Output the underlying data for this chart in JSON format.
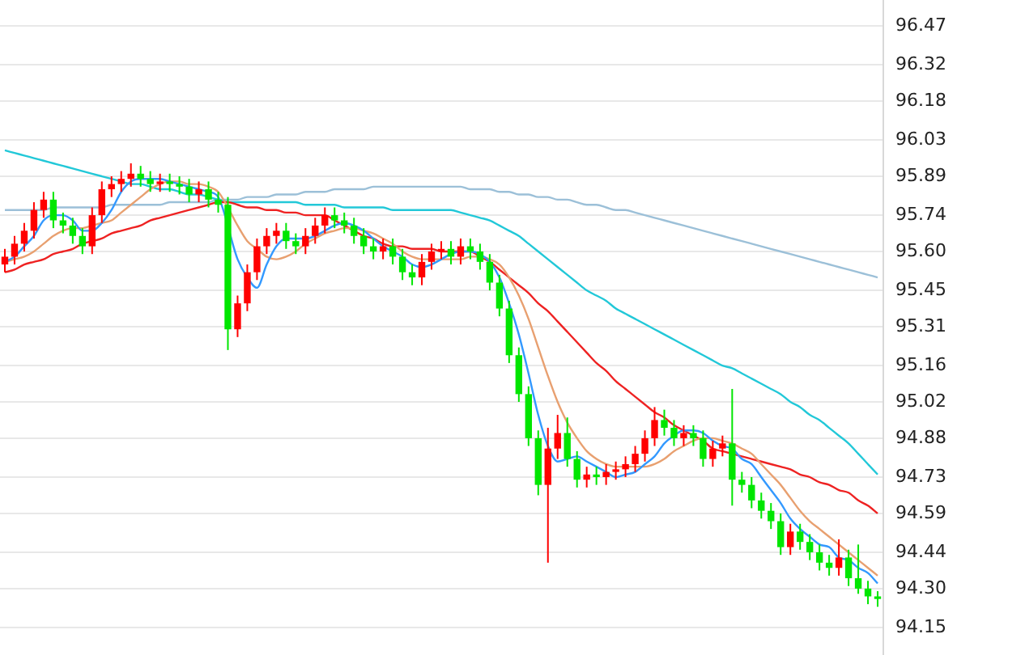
{
  "chart_data": {
    "type": "candlestick",
    "categories": [
      null,
      null,
      null,
      null,
      null,
      null,
      null,
      null,
      null,
      null,
      null,
      null,
      null,
      null,
      null,
      null,
      null,
      null,
      null,
      null,
      null,
      null,
      null,
      null,
      null,
      null,
      null,
      null,
      null,
      null,
      null,
      null,
      null,
      null,
      null,
      null,
      null,
      null,
      null,
      null,
      null,
      null,
      null,
      null,
      null,
      null,
      null,
      null,
      null,
      null,
      null,
      null,
      null,
      null,
      null,
      null,
      null,
      null,
      null,
      null,
      null,
      null,
      null,
      null,
      null,
      null,
      null,
      null,
      null,
      null,
      null,
      null,
      null,
      null,
      null,
      null,
      null,
      null,
      null,
      null,
      null,
      null,
      null,
      null,
      null,
      null,
      null,
      null,
      null,
      null,
      null
    ],
    "ohlc": [
      [
        95.55,
        95.61,
        95.52,
        95.58
      ],
      [
        95.58,
        95.66,
        95.55,
        95.63
      ],
      [
        95.63,
        95.71,
        95.6,
        95.68
      ],
      [
        95.68,
        95.79,
        95.65,
        95.76
      ],
      [
        95.76,
        95.83,
        95.73,
        95.8
      ],
      [
        95.8,
        95.83,
        95.69,
        95.72
      ],
      [
        95.72,
        95.75,
        95.67,
        95.7
      ],
      [
        95.7,
        95.73,
        95.63,
        95.66
      ],
      [
        95.66,
        95.69,
        95.59,
        95.62
      ],
      [
        95.62,
        95.77,
        95.59,
        95.74
      ],
      [
        95.74,
        95.87,
        95.71,
        95.84
      ],
      [
        95.84,
        95.89,
        95.81,
        95.86
      ],
      [
        95.86,
        95.91,
        95.83,
        95.88
      ],
      [
        95.88,
        95.94,
        95.85,
        95.9
      ],
      [
        95.9,
        95.93,
        95.85,
        95.88
      ],
      [
        95.88,
        95.91,
        95.83,
        95.86
      ],
      [
        95.86,
        95.9,
        95.83,
        95.87
      ],
      [
        95.87,
        95.9,
        95.83,
        95.86
      ],
      [
        95.86,
        95.89,
        95.82,
        95.85
      ],
      [
        95.85,
        95.88,
        95.79,
        95.82
      ],
      [
        95.82,
        95.87,
        95.79,
        95.84
      ],
      [
        95.84,
        95.87,
        95.77,
        95.8
      ],
      [
        95.8,
        95.83,
        95.75,
        95.78
      ],
      [
        95.78,
        95.81,
        95.22,
        95.3
      ],
      [
        95.3,
        95.43,
        95.27,
        95.4
      ],
      [
        95.4,
        95.55,
        95.37,
        95.52
      ],
      [
        95.52,
        95.65,
        95.49,
        95.62
      ],
      [
        95.62,
        95.69,
        95.59,
        95.66
      ],
      [
        95.66,
        95.71,
        95.63,
        95.68
      ],
      [
        95.68,
        95.71,
        95.61,
        95.64
      ],
      [
        95.64,
        95.67,
        95.59,
        95.62
      ],
      [
        95.62,
        95.69,
        95.59,
        95.66
      ],
      [
        95.66,
        95.73,
        95.63,
        95.7
      ],
      [
        95.7,
        95.77,
        95.67,
        95.74
      ],
      [
        95.74,
        95.77,
        95.69,
        95.72
      ],
      [
        95.72,
        95.75,
        95.67,
        95.7
      ],
      [
        95.7,
        95.73,
        95.63,
        95.66
      ],
      [
        95.66,
        95.69,
        95.59,
        95.62
      ],
      [
        95.62,
        95.65,
        95.57,
        95.6
      ],
      [
        95.6,
        95.65,
        95.57,
        95.62
      ],
      [
        95.62,
        95.65,
        95.55,
        95.58
      ],
      [
        95.58,
        95.61,
        95.49,
        95.52
      ],
      [
        95.52,
        95.55,
        95.47,
        95.5
      ],
      [
        95.5,
        95.59,
        95.47,
        95.56
      ],
      [
        95.56,
        95.63,
        95.53,
        95.6
      ],
      [
        95.6,
        95.64,
        95.57,
        95.61
      ],
      [
        95.61,
        95.64,
        95.55,
        95.58
      ],
      [
        95.58,
        95.65,
        95.55,
        95.62
      ],
      [
        95.62,
        95.65,
        95.57,
        95.6
      ],
      [
        95.6,
        95.63,
        95.53,
        95.56
      ],
      [
        95.56,
        95.59,
        95.45,
        95.48
      ],
      [
        95.48,
        95.51,
        95.35,
        95.38
      ],
      [
        95.38,
        95.41,
        95.17,
        95.2
      ],
      [
        95.2,
        95.23,
        95.02,
        95.05
      ],
      [
        95.05,
        95.08,
        94.85,
        94.88
      ],
      [
        94.88,
        94.91,
        94.66,
        94.7
      ],
      [
        94.7,
        94.92,
        94.4,
        94.84
      ],
      [
        94.84,
        94.97,
        94.8,
        94.9
      ],
      [
        94.9,
        94.96,
        94.77,
        94.8
      ],
      [
        94.8,
        94.83,
        94.69,
        94.72
      ],
      [
        94.72,
        94.77,
        94.69,
        94.74
      ],
      [
        94.74,
        94.77,
        94.7,
        94.73
      ],
      [
        94.73,
        94.78,
        94.7,
        94.75
      ],
      [
        94.75,
        94.79,
        94.72,
        94.76
      ],
      [
        94.76,
        94.81,
        94.73,
        94.78
      ],
      [
        94.78,
        94.85,
        94.75,
        94.82
      ],
      [
        94.82,
        94.91,
        94.79,
        94.88
      ],
      [
        94.88,
        95.0,
        94.85,
        94.95
      ],
      [
        94.95,
        94.99,
        94.89,
        94.92
      ],
      [
        94.92,
        94.95,
        94.85,
        94.88
      ],
      [
        94.88,
        94.93,
        94.85,
        94.9
      ],
      [
        94.9,
        94.93,
        94.85,
        94.88
      ],
      [
        94.88,
        94.91,
        94.77,
        94.8
      ],
      [
        94.8,
        94.87,
        94.77,
        94.84
      ],
      [
        94.84,
        94.89,
        94.81,
        94.86
      ],
      [
        94.86,
        95.07,
        94.62,
        94.72
      ],
      [
        94.72,
        94.75,
        94.67,
        94.7
      ],
      [
        94.7,
        94.73,
        94.61,
        94.64
      ],
      [
        94.64,
        94.67,
        94.57,
        94.6
      ],
      [
        94.6,
        94.63,
        94.53,
        94.56
      ],
      [
        94.56,
        94.59,
        94.43,
        94.46
      ],
      [
        94.46,
        94.55,
        94.43,
        94.52
      ],
      [
        94.52,
        94.55,
        94.45,
        94.48
      ],
      [
        94.48,
        94.51,
        94.41,
        94.44
      ],
      [
        94.44,
        94.47,
        94.37,
        94.4
      ],
      [
        94.4,
        94.43,
        94.35,
        94.38
      ],
      [
        94.38,
        94.49,
        94.35,
        94.42
      ],
      [
        94.42,
        94.45,
        94.31,
        94.34
      ],
      [
        94.34,
        94.47,
        94.28,
        94.3
      ],
      [
        94.3,
        94.33,
        94.24,
        94.27
      ],
      [
        94.27,
        94.29,
        94.23,
        94.26
      ]
    ],
    "colors": [
      "#ff0000",
      "#ff0000",
      "#ff0000",
      "#ff0000",
      "#ff0000",
      "#00e600",
      "#00e600",
      "#00e600",
      "#00e600",
      "#ff0000",
      "#ff0000",
      "#ff0000",
      "#ff0000",
      "#ff0000",
      "#00e600",
      "#00e600",
      "#ff0000",
      "#00e600",
      "#00e600",
      "#00e600",
      "#ff0000",
      "#00e600",
      "#00e600",
      "#00e600",
      "#ff0000",
      "#ff0000",
      "#ff0000",
      "#ff0000",
      "#ff0000",
      "#00e600",
      "#00e600",
      "#ff0000",
      "#ff0000",
      "#ff0000",
      "#00e600",
      "#00e600",
      "#00e600",
      "#00e600",
      "#00e600",
      "#ff0000",
      "#00e600",
      "#00e600",
      "#00e600",
      "#ff0000",
      "#ff0000",
      "#ff0000",
      "#00e600",
      "#ff0000",
      "#00e600",
      "#00e600",
      "#00e600",
      "#00e600",
      "#00e600",
      "#00e600",
      "#00e600",
      "#00e600",
      "#ff0000",
      "#ff0000",
      "#00e600",
      "#00e600",
      "#ff0000",
      "#00e600",
      "#ff0000",
      "#ff0000",
      "#ff0000",
      "#ff0000",
      "#ff0000",
      "#ff0000",
      "#00e600",
      "#00e600",
      "#ff0000",
      "#00e600",
      "#00e600",
      "#ff0000",
      "#ff0000",
      "#00e600",
      "#00e600",
      "#00e600",
      "#00e600",
      "#00e600",
      "#00e600",
      "#ff0000",
      "#00e600",
      "#00e600",
      "#00e600",
      "#00e600",
      "#ff0000",
      "#00e600",
      "#00e600",
      "#00e600",
      "#00e600"
    ],
    "series": [
      {
        "type": "line",
        "color": "#3399ff",
        "values": [
          95.56,
          95.58,
          95.62,
          95.66,
          95.72,
          95.74,
          95.74,
          95.72,
          95.68,
          95.68,
          95.71,
          95.76,
          95.83,
          95.87,
          95.88,
          95.88,
          95.88,
          95.87,
          95.86,
          95.85,
          95.84,
          95.83,
          95.81,
          null,
          95.57,
          95.5,
          95.46,
          95.55,
          95.62,
          95.65,
          95.65,
          95.65,
          95.66,
          95.68,
          95.7,
          95.71,
          95.7,
          95.68,
          95.65,
          95.62,
          95.6,
          95.58,
          95.55,
          95.54,
          95.55,
          95.57,
          95.59,
          95.6,
          95.6,
          95.59,
          95.56,
          95.5,
          95.4,
          95.28,
          95.13,
          94.97,
          94.85,
          94.79,
          94.8,
          94.81,
          94.79,
          94.77,
          94.75,
          94.73,
          94.74,
          94.75,
          94.78,
          94.81,
          94.86,
          94.89,
          94.91,
          94.91,
          94.9,
          94.87,
          94.85,
          94.84,
          94.8,
          94.78,
          94.73,
          94.68,
          94.63,
          94.57,
          94.53,
          94.5,
          94.47,
          94.46,
          94.42,
          94.41,
          94.38,
          94.36,
          94.32
        ]
      },
      {
        "type": "line",
        "color": "#e8a070",
        "values": [
          95.56,
          95.57,
          95.58,
          95.6,
          95.63,
          95.66,
          95.68,
          95.69,
          95.69,
          95.7,
          95.71,
          95.72,
          95.75,
          95.78,
          95.81,
          95.84,
          95.86,
          95.87,
          95.87,
          95.86,
          95.86,
          95.85,
          95.83,
          95.77,
          95.7,
          95.64,
          95.61,
          95.58,
          95.57,
          95.58,
          95.6,
          95.63,
          95.65,
          95.67,
          95.68,
          95.69,
          95.69,
          95.68,
          95.67,
          95.65,
          95.63,
          95.6,
          95.58,
          95.57,
          95.57,
          95.57,
          95.57,
          95.57,
          95.58,
          95.58,
          95.57,
          95.55,
          95.5,
          95.43,
          95.34,
          95.23,
          95.12,
          95.02,
          94.94,
          94.88,
          94.83,
          94.8,
          94.78,
          94.77,
          94.77,
          94.77,
          94.77,
          94.78,
          94.8,
          94.83,
          94.85,
          94.87,
          94.88,
          94.88,
          94.87,
          94.86,
          94.84,
          94.82,
          94.78,
          94.74,
          94.7,
          94.65,
          94.6,
          94.56,
          94.53,
          94.5,
          94.47,
          94.44,
          94.41,
          94.38,
          94.35
        ]
      },
      {
        "type": "line",
        "color": "#ee2222",
        "values": [
          95.52,
          95.53,
          95.55,
          95.56,
          95.57,
          95.59,
          95.6,
          95.61,
          95.63,
          95.64,
          95.65,
          95.67,
          95.68,
          95.69,
          95.7,
          95.72,
          95.73,
          95.74,
          95.75,
          95.76,
          95.77,
          95.78,
          95.79,
          95.79,
          95.78,
          95.77,
          95.77,
          95.76,
          95.76,
          95.75,
          95.75,
          95.74,
          95.74,
          95.74,
          95.72,
          95.7,
          95.68,
          95.66,
          95.65,
          95.63,
          95.62,
          95.62,
          95.61,
          95.61,
          95.61,
          95.6,
          95.6,
          95.6,
          95.6,
          95.58,
          95.56,
          95.53,
          95.5,
          95.47,
          95.44,
          95.4,
          95.37,
          95.33,
          95.29,
          95.25,
          95.21,
          95.17,
          95.14,
          95.1,
          95.07,
          95.04,
          95.01,
          94.98,
          94.96,
          94.93,
          94.91,
          94.89,
          94.87,
          94.84,
          94.83,
          94.82,
          94.81,
          94.8,
          94.79,
          94.78,
          94.77,
          94.76,
          94.74,
          94.73,
          94.71,
          94.7,
          94.68,
          94.67,
          94.64,
          94.62,
          94.59
        ]
      },
      {
        "type": "line",
        "color": "#22c8d8",
        "values": [
          95.99,
          95.98,
          95.97,
          95.96,
          95.95,
          95.94,
          95.93,
          95.92,
          95.91,
          95.9,
          95.89,
          95.88,
          95.87,
          95.86,
          95.86,
          95.85,
          95.84,
          95.84,
          95.83,
          95.82,
          95.82,
          95.81,
          95.8,
          95.79,
          95.79,
          95.79,
          95.79,
          95.79,
          95.79,
          95.79,
          95.79,
          95.78,
          95.78,
          95.78,
          95.78,
          95.77,
          95.77,
          95.77,
          95.77,
          95.77,
          95.76,
          95.76,
          95.76,
          95.76,
          95.76,
          95.76,
          95.76,
          95.75,
          95.74,
          95.73,
          95.72,
          95.7,
          95.68,
          95.66,
          95.63,
          95.6,
          95.57,
          95.54,
          95.51,
          95.48,
          95.45,
          95.43,
          95.41,
          95.38,
          95.36,
          95.34,
          95.32,
          95.3,
          95.28,
          95.26,
          95.24,
          95.22,
          95.2,
          95.18,
          95.16,
          95.15,
          95.13,
          95.11,
          95.09,
          95.07,
          95.05,
          95.02,
          95.0,
          94.97,
          94.95,
          94.92,
          94.89,
          94.86,
          94.82,
          94.78,
          94.74
        ]
      },
      {
        "type": "line",
        "color": "#9cc0d8",
        "values": [
          95.76,
          95.76,
          95.76,
          95.76,
          95.76,
          95.77,
          95.77,
          95.77,
          95.77,
          95.77,
          95.77,
          95.78,
          95.78,
          95.78,
          95.78,
          95.78,
          95.78,
          95.79,
          95.79,
          95.79,
          95.79,
          95.79,
          95.8,
          95.8,
          95.8,
          95.81,
          95.81,
          95.81,
          95.82,
          95.82,
          95.82,
          95.83,
          95.83,
          95.83,
          95.84,
          95.84,
          95.84,
          95.84,
          95.85,
          95.85,
          95.85,
          95.85,
          95.85,
          95.85,
          95.85,
          95.85,
          95.85,
          95.85,
          95.84,
          95.84,
          95.84,
          95.83,
          95.83,
          95.82,
          95.82,
          95.81,
          95.81,
          95.8,
          95.8,
          95.79,
          95.78,
          95.78,
          95.77,
          95.76,
          95.76,
          95.75,
          95.74,
          95.73,
          95.72,
          95.71,
          95.7,
          95.69,
          95.68,
          95.67,
          95.66,
          95.65,
          95.64,
          95.63,
          95.62,
          95.61,
          95.6,
          95.59,
          95.58,
          95.57,
          95.56,
          95.55,
          95.54,
          95.53,
          95.52,
          95.51,
          95.5
        ]
      }
    ],
    "ylim": [
      94.15,
      96.47
    ],
    "yticks": [
      96.47,
      96.32,
      96.18,
      96.03,
      95.89,
      95.74,
      {
        "value": 95.6,
        "label": "95.60"
      },
      95.45,
      95.31,
      95.16,
      95.02,
      94.88,
      94.73,
      94.59,
      94.44,
      {
        "value": 94.3,
        "label": "94.30"
      },
      94.15
    ],
    "grid": "y",
    "legend": false,
    "tick_labels": "y"
  }
}
